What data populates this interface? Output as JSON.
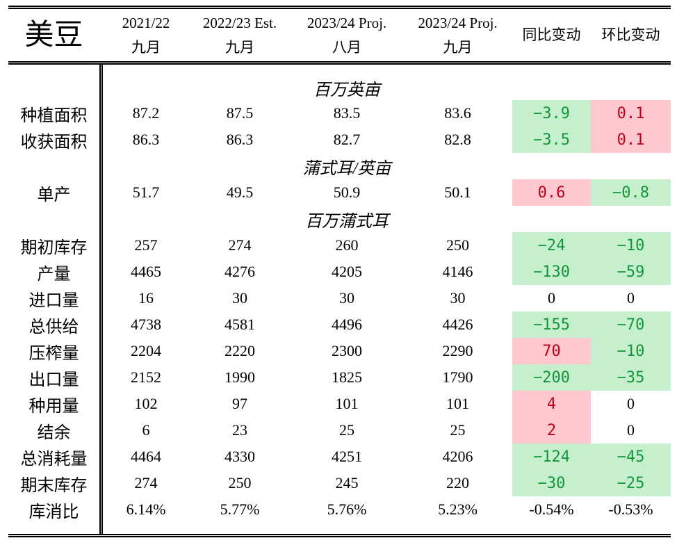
{
  "chart_data": {
    "type": "table",
    "title": "美豆",
    "columns": [
      {
        "label": "2021/22",
        "sublabel": "九月"
      },
      {
        "label": "2022/23 Est.",
        "sublabel": "九月"
      },
      {
        "label": "2023/24 Proj.",
        "sublabel": "八月"
      },
      {
        "label": "2023/24 Proj.",
        "sublabel": "九月"
      },
      {
        "label": "同比变动"
      },
      {
        "label": "环比变动"
      }
    ],
    "rows": [
      {
        "unit": "百万英亩"
      },
      {
        "label": "种植面积",
        "values": [
          "87.2",
          "87.5",
          "83.5",
          "83.6"
        ],
        "yoy": {
          "text": "−3.9",
          "fill": "green"
        },
        "mom": {
          "text": "0.1",
          "fill": "pink"
        }
      },
      {
        "label": "收获面积",
        "values": [
          "86.3",
          "86.3",
          "82.7",
          "82.8"
        ],
        "yoy": {
          "text": "−3.5",
          "fill": "green"
        },
        "mom": {
          "text": "0.1",
          "fill": "pink"
        }
      },
      {
        "unit": "蒲式耳/英亩"
      },
      {
        "label": "单产",
        "values": [
          "51.7",
          "49.5",
          "50.9",
          "50.1"
        ],
        "yoy": {
          "text": "0.6",
          "fill": "pink"
        },
        "mom": {
          "text": "−0.8",
          "fill": "green"
        }
      },
      {
        "unit": "百万蒲式耳"
      },
      {
        "label": "期初库存",
        "values": [
          "257",
          "274",
          "260",
          "250"
        ],
        "yoy": {
          "text": "−24",
          "fill": "green"
        },
        "mom": {
          "text": "−10",
          "fill": "green"
        }
      },
      {
        "label": "产量",
        "values": [
          "4465",
          "4276",
          "4205",
          "4146"
        ],
        "yoy": {
          "text": "−130",
          "fill": "green"
        },
        "mom": {
          "text": "−59",
          "fill": "green"
        }
      },
      {
        "label": "进口量",
        "values": [
          "16",
          "30",
          "30",
          "30"
        ],
        "yoy": {
          "text": "0"
        },
        "mom": {
          "text": "0"
        }
      },
      {
        "label": "总供给",
        "values": [
          "4738",
          "4581",
          "4496",
          "4426"
        ],
        "yoy": {
          "text": "−155",
          "fill": "green"
        },
        "mom": {
          "text": "−70",
          "fill": "green"
        }
      },
      {
        "label": "压榨量",
        "values": [
          "2204",
          "2220",
          "2300",
          "2290"
        ],
        "yoy": {
          "text": "70",
          "fill": "pink"
        },
        "mom": {
          "text": "−10",
          "fill": "green"
        }
      },
      {
        "label": "出口量",
        "values": [
          "2152",
          "1990",
          "1825",
          "1790"
        ],
        "yoy": {
          "text": "−200",
          "fill": "green"
        },
        "mom": {
          "text": "−35",
          "fill": "green"
        }
      },
      {
        "label": "种用量",
        "values": [
          "102",
          "97",
          "101",
          "101"
        ],
        "yoy": {
          "text": "4",
          "fill": "pink"
        },
        "mom": {
          "text": "0"
        }
      },
      {
        "label": "结余",
        "values": [
          "6",
          "23",
          "25",
          "25"
        ],
        "yoy": {
          "text": "2",
          "fill": "pink"
        },
        "mom": {
          "text": "0"
        }
      },
      {
        "label": "总消耗量",
        "values": [
          "4464",
          "4330",
          "4251",
          "4206"
        ],
        "yoy": {
          "text": "−124",
          "fill": "green"
        },
        "mom": {
          "text": "−45",
          "fill": "green"
        }
      },
      {
        "label": "期末库存",
        "values": [
          "274",
          "250",
          "245",
          "220"
        ],
        "yoy": {
          "text": "−30",
          "fill": "green"
        },
        "mom": {
          "text": "−25",
          "fill": "green"
        }
      },
      {
        "label": "库消比",
        "values": [
          "6.14%",
          "5.77%",
          "5.76%",
          "5.23%"
        ],
        "yoy": {
          "text": "-0.54%"
        },
        "mom": {
          "text": "-0.53%"
        }
      }
    ]
  },
  "colors": {
    "green_fill": "#c6efce",
    "green_text": "#14963c",
    "pink_fill": "#ffc7ce",
    "pink_text": "#c0001a"
  }
}
